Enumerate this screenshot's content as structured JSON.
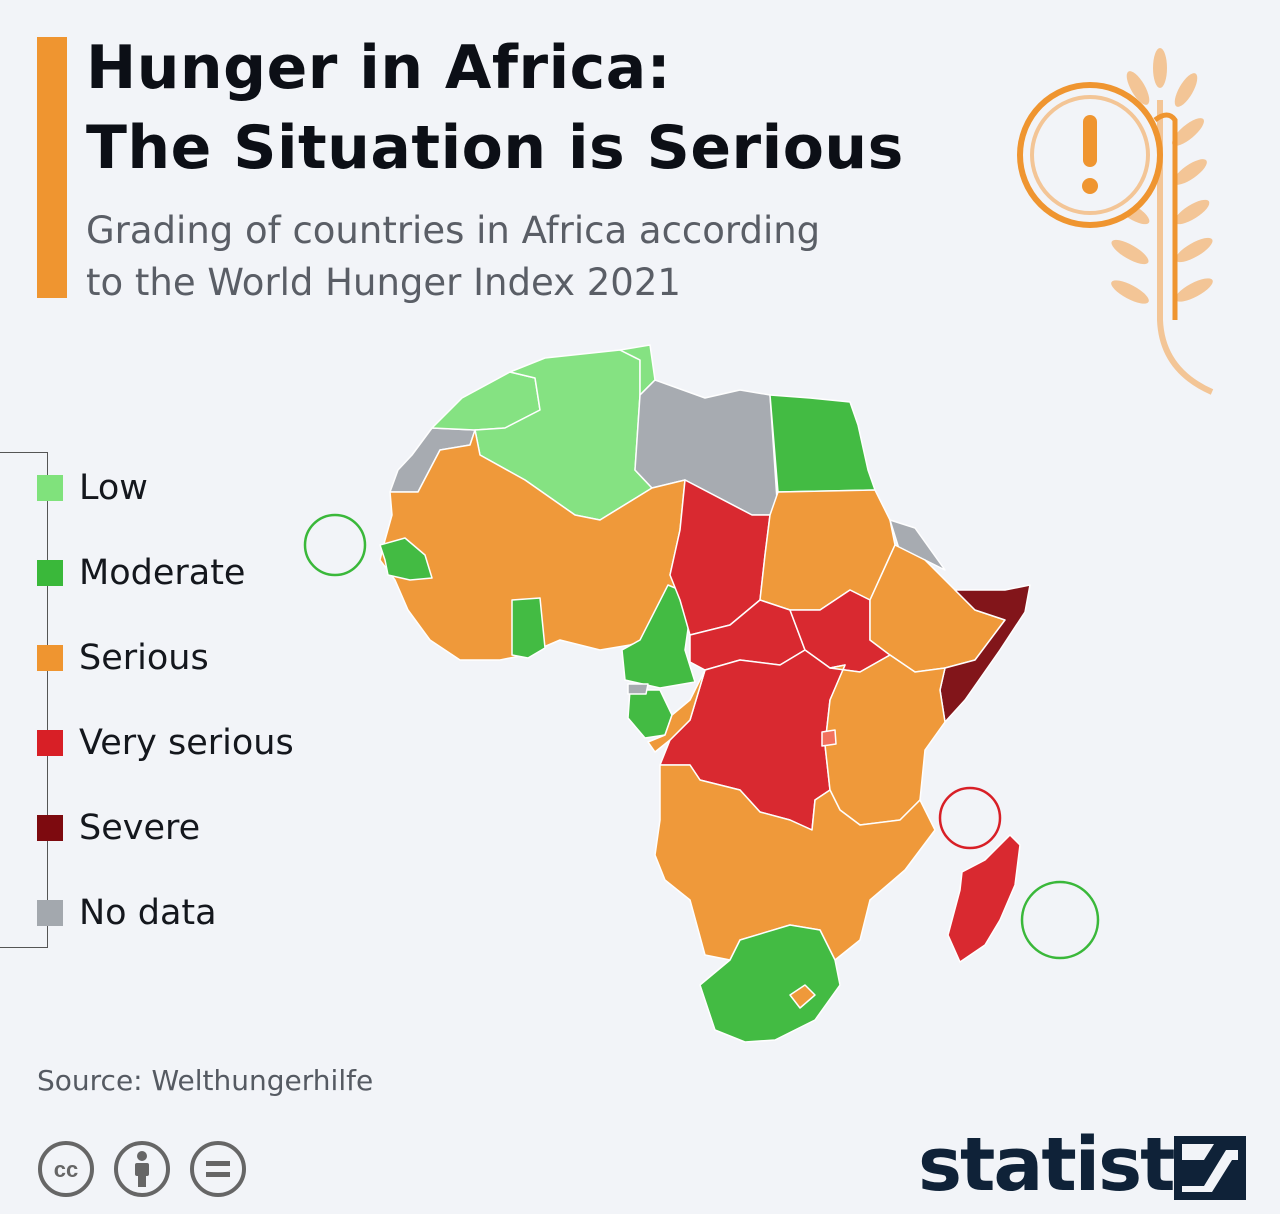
{
  "header": {
    "title_line1": "Hunger in Africa:",
    "title_line2": "The Situation is Serious",
    "subtitle_line1": "Grading of countries in Africa according",
    "subtitle_line2": "to the World Hunger Index 2021"
  },
  "legend": [
    {
      "label": "Low",
      "color": "#80e27c"
    },
    {
      "label": "Moderate",
      "color": "#3ab83a"
    },
    {
      "label": "Serious",
      "color": "#ef9530"
    },
    {
      "label": "Very serious",
      "color": "#d81f26"
    },
    {
      "label": "Severe",
      "color": "#7d0a0f"
    },
    {
      "label": "No data",
      "color": "#a3a8ae"
    }
  ],
  "map": {
    "regions": [
      {
        "grade": "Low",
        "color": "#80e27c"
      },
      {
        "grade": "Moderate",
        "color": "#3ab83a"
      },
      {
        "grade": "Serious",
        "color": "#ef9530"
      },
      {
        "grade": "Very serious",
        "color": "#d81f26"
      },
      {
        "grade": "Severe",
        "color": "#7d0a0f"
      },
      {
        "grade": "No data",
        "color": "#a3a8ae"
      }
    ]
  },
  "footer": {
    "source": "Source: Welthungerhilfe",
    "license_icons": [
      "creative-commons-icon",
      "attribution-icon",
      "no-derivatives-icon"
    ],
    "brand": "statista"
  },
  "colors": {
    "accent": "#ef9530",
    "background": "#f2f4f8",
    "title": "#0c0f16",
    "subtitle": "#5a5e66"
  }
}
